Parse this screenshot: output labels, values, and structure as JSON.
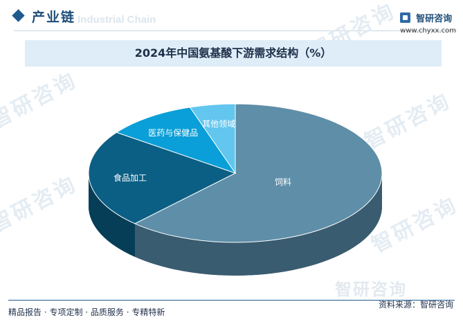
{
  "header": {
    "section_title": "产业链",
    "watermark_en": "Industrial Chain",
    "brand_name": "智研咨询",
    "brand_url": "www.chyxx.com"
  },
  "watermark_text": "智研咨询",
  "chart_data": {
    "type": "pie",
    "title": "2024年中国氨基酸下游需求结构（%）",
    "labels": [
      "饲料",
      "食品加工",
      "医药与保健品",
      "其他领域"
    ],
    "values": [
      62,
      23,
      10,
      5
    ],
    "colors": [
      "#5e8ea8",
      "#0c5f84",
      "#0a9fd8",
      "#62c6ee"
    ],
    "side_colors": [
      "#3a5c70",
      "#063e58",
      "#066f98",
      "#3d98bf"
    ]
  },
  "footer": {
    "left": "精品报告 · 专项定制 · 品质服务 · 专精特新",
    "source": "资料来源：智研咨询"
  }
}
